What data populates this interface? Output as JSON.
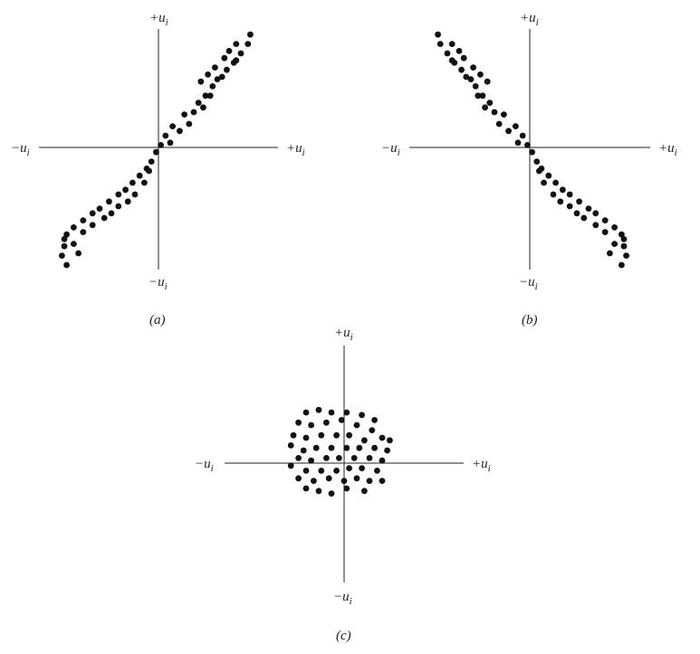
{
  "figure": {
    "panels": [
      {
        "id": "a",
        "caption": "(a)",
        "labels": {
          "top": "+u",
          "bottom": "−u",
          "left": "−u",
          "right": "+u",
          "sub": "i"
        },
        "points": [
          [
            0.78,
            0.96
          ],
          [
            0.76,
            0.88
          ],
          [
            0.7,
            0.8
          ],
          [
            0.64,
            0.72
          ],
          [
            0.58,
            0.66
          ],
          [
            0.54,
            0.6
          ],
          [
            0.46,
            0.52
          ],
          [
            0.4,
            0.44
          ],
          [
            0.34,
            0.38
          ],
          [
            0.3,
            0.3
          ],
          [
            0.66,
            0.88
          ],
          [
            0.6,
            0.82
          ],
          [
            0.66,
            0.74
          ],
          [
            0.56,
            0.76
          ],
          [
            0.48,
            0.68
          ],
          [
            0.5,
            0.58
          ],
          [
            0.42,
            0.62
          ],
          [
            0.36,
            0.56
          ],
          [
            0.44,
            0.44
          ],
          [
            0.38,
            0.34
          ],
          [
            0.22,
            0.28
          ],
          [
            0.26,
            0.2
          ],
          [
            0.12,
            0.18
          ],
          [
            0.06,
            0.1
          ],
          [
            0.02,
            0.02
          ],
          [
            0.18,
            0.14
          ],
          [
            0.1,
            0.04
          ],
          [
            -0.02,
            -0.04
          ],
          [
            -0.06,
            -0.12
          ],
          [
            -0.1,
            -0.18
          ],
          [
            -0.16,
            -0.24
          ],
          [
            -0.22,
            -0.3
          ],
          [
            -0.28,
            -0.36
          ],
          [
            -0.34,
            -0.4
          ],
          [
            -0.42,
            -0.46
          ],
          [
            -0.5,
            -0.52
          ],
          [
            -0.56,
            -0.56
          ],
          [
            -0.64,
            -0.62
          ],
          [
            -0.72,
            -0.68
          ],
          [
            -0.78,
            -0.74
          ],
          [
            -0.8,
            -0.84
          ],
          [
            -0.82,
            -0.92
          ],
          [
            -0.78,
            -1.0
          ],
          [
            -0.2,
            -0.4
          ],
          [
            -0.26,
            -0.46
          ],
          [
            -0.34,
            -0.5
          ],
          [
            -0.4,
            -0.56
          ],
          [
            -0.46,
            -0.6
          ],
          [
            -0.56,
            -0.66
          ],
          [
            -0.64,
            -0.72
          ],
          [
            -0.72,
            -0.82
          ],
          [
            -0.68,
            -0.9
          ],
          [
            -0.8,
            -0.78
          ],
          [
            -0.12,
            -0.3
          ],
          [
            -0.08,
            -0.2
          ]
        ]
      },
      {
        "id": "b",
        "caption": "(b)",
        "labels": {
          "top": "+u",
          "bottom": "−u",
          "left": "−u",
          "right": "+u",
          "sub": "i"
        },
        "points": [
          [
            -0.78,
            0.96
          ],
          [
            -0.76,
            0.88
          ],
          [
            -0.7,
            0.8
          ],
          [
            -0.64,
            0.72
          ],
          [
            -0.58,
            0.66
          ],
          [
            -0.54,
            0.6
          ],
          [
            -0.46,
            0.52
          ],
          [
            -0.4,
            0.44
          ],
          [
            -0.34,
            0.38
          ],
          [
            -0.3,
            0.3
          ],
          [
            -0.66,
            0.88
          ],
          [
            -0.6,
            0.82
          ],
          [
            -0.66,
            0.74
          ],
          [
            -0.56,
            0.76
          ],
          [
            -0.48,
            0.68
          ],
          [
            -0.5,
            0.58
          ],
          [
            -0.42,
            0.62
          ],
          [
            -0.36,
            0.56
          ],
          [
            -0.44,
            0.44
          ],
          [
            -0.38,
            0.34
          ],
          [
            -0.22,
            0.28
          ],
          [
            -0.26,
            0.2
          ],
          [
            -0.12,
            0.18
          ],
          [
            -0.06,
            0.1
          ],
          [
            -0.02,
            0.02
          ],
          [
            -0.18,
            0.14
          ],
          [
            -0.1,
            0.04
          ],
          [
            0.02,
            -0.04
          ],
          [
            0.06,
            -0.12
          ],
          [
            0.1,
            -0.18
          ],
          [
            0.16,
            -0.24
          ],
          [
            0.22,
            -0.3
          ],
          [
            0.28,
            -0.36
          ],
          [
            0.34,
            -0.4
          ],
          [
            0.42,
            -0.46
          ],
          [
            0.5,
            -0.52
          ],
          [
            0.56,
            -0.56
          ],
          [
            0.64,
            -0.62
          ],
          [
            0.72,
            -0.68
          ],
          [
            0.78,
            -0.74
          ],
          [
            0.8,
            -0.84
          ],
          [
            0.82,
            -0.92
          ],
          [
            0.78,
            -1.0
          ],
          [
            0.2,
            -0.4
          ],
          [
            0.26,
            -0.46
          ],
          [
            0.34,
            -0.5
          ],
          [
            0.4,
            -0.56
          ],
          [
            0.46,
            -0.6
          ],
          [
            0.56,
            -0.66
          ],
          [
            0.64,
            -0.72
          ],
          [
            0.72,
            -0.82
          ],
          [
            0.68,
            -0.9
          ],
          [
            0.8,
            -0.78
          ],
          [
            0.12,
            -0.3
          ],
          [
            0.08,
            -0.2
          ]
        ]
      },
      {
        "id": "c",
        "caption": "(c)",
        "labels": {
          "top": "+u",
          "bottom": "−u",
          "left": "−u",
          "right": "+u",
          "sub": "i"
        },
        "points": [
          [
            -0.3,
            0.4
          ],
          [
            -0.2,
            0.42
          ],
          [
            -0.1,
            0.4
          ],
          [
            0.02,
            0.4
          ],
          [
            0.14,
            0.38
          ],
          [
            0.24,
            0.34
          ],
          [
            -0.36,
            0.32
          ],
          [
            -0.26,
            0.3
          ],
          [
            -0.14,
            0.32
          ],
          [
            -0.02,
            0.34
          ],
          [
            0.1,
            0.3
          ],
          [
            0.22,
            0.26
          ],
          [
            0.3,
            0.2
          ],
          [
            -0.4,
            0.22
          ],
          [
            -0.3,
            0.2
          ],
          [
            -0.18,
            0.22
          ],
          [
            -0.06,
            0.22
          ],
          [
            0.04,
            0.22
          ],
          [
            0.16,
            0.18
          ],
          [
            0.36,
            0.18
          ],
          [
            -0.42,
            0.14
          ],
          [
            -0.32,
            0.1
          ],
          [
            -0.22,
            0.12
          ],
          [
            -0.1,
            0.12
          ],
          [
            0.02,
            0.12
          ],
          [
            0.12,
            0.12
          ],
          [
            0.24,
            0.12
          ],
          [
            0.34,
            0.1
          ],
          [
            -0.36,
            0.04
          ],
          [
            -0.26,
            0.02
          ],
          [
            -0.14,
            0.04
          ],
          [
            -0.04,
            0.04
          ],
          [
            0.08,
            0.04
          ],
          [
            0.2,
            0.04
          ],
          [
            0.3,
            0.02
          ],
          [
            -0.42,
            -0.02
          ],
          [
            -0.3,
            -0.06
          ],
          [
            -0.18,
            -0.06
          ],
          [
            -0.06,
            -0.06
          ],
          [
            0.04,
            -0.04
          ],
          [
            0.14,
            -0.04
          ],
          [
            0.26,
            -0.06
          ],
          [
            -0.36,
            -0.12
          ],
          [
            -0.24,
            -0.14
          ],
          [
            -0.12,
            -0.12
          ],
          [
            0.0,
            -0.14
          ],
          [
            0.1,
            -0.12
          ],
          [
            0.2,
            -0.14
          ],
          [
            0.3,
            -0.14
          ],
          [
            -0.3,
            -0.2
          ],
          [
            -0.2,
            -0.22
          ],
          [
            -0.1,
            -0.24
          ],
          [
            0.02,
            -0.2
          ],
          [
            0.16,
            -0.22
          ]
        ]
      }
    ]
  }
}
